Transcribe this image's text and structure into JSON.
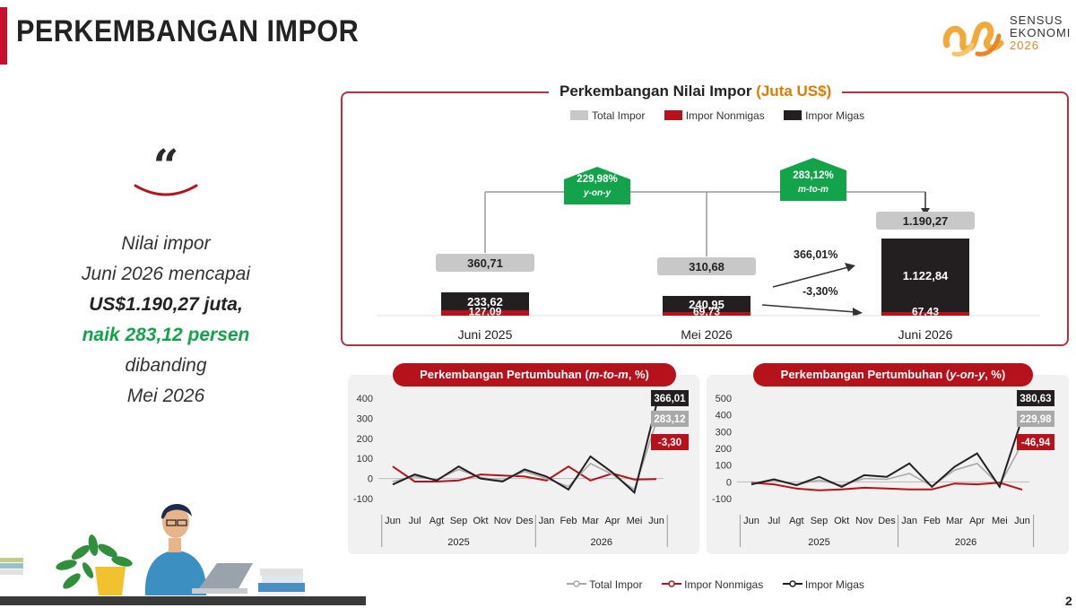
{
  "header": {
    "title": "PERKEMBANGAN IMPOR",
    "logo_text": [
      "SENSUS",
      "EKONOMI",
      "2026"
    ]
  },
  "quote": {
    "mark": "“",
    "line1": "Nilai impor",
    "line2": "Juni 2026 mencapai",
    "line3": "US$1.190,27 juta,",
    "line4": "naik 283,12 persen",
    "line5": "dibanding",
    "line6": "Mei 2026"
  },
  "main_chart": {
    "title_main": "Perkembangan Nilai Impor ",
    "title_unit": "(Juta US$)",
    "legend": [
      "Total Impor",
      "Impor Nonmigas",
      "Impor Migas"
    ],
    "badge_yoy_value": "229,98%",
    "badge_yoy_label": "y-on-y",
    "badge_mtm_value": "283,12%",
    "badge_mtm_label": "m-to-m",
    "arrow_migas_label": "366,01%",
    "arrow_nonmigas_label": "-3,30%"
  },
  "chart_data": [
    {
      "type": "bar",
      "title": "Perkembangan Nilai Impor (Juta US$)",
      "categories": [
        "Juni 2025",
        "Mei 2026",
        "Juni 2026"
      ],
      "series": [
        {
          "name": "Total Impor",
          "values": [
            360.71,
            310.68,
            1190.27
          ],
          "labels": [
            "360,71",
            "310,68",
            "1.190,27"
          ]
        },
        {
          "name": "Impor Nonmigas",
          "values": [
            127.09,
            69.73,
            67.43
          ],
          "labels": [
            "127,09",
            "69,73",
            "67,43"
          ]
        },
        {
          "name": "Impor Migas",
          "values": [
            233.62,
            240.95,
            1122.84
          ],
          "labels": [
            "233,62",
            "240,95",
            "1.122,84"
          ]
        }
      ],
      "stacked": true,
      "colors": {
        "total": "#c8c8c8",
        "nonmigas": "#b5121b",
        "migas": "#231f20"
      }
    },
    {
      "type": "line",
      "title": "Perkembangan Pertumbuhan (m-to-m, %)",
      "x": [
        "Jun",
        "Jul",
        "Agt",
        "Sep",
        "Okt",
        "Nov",
        "Des",
        "Jan",
        "Feb",
        "Mar",
        "Apr",
        "Mei",
        "Jun"
      ],
      "year_groups": [
        {
          "label": "2025",
          "count": 7
        },
        {
          "label": "2026",
          "count": 6
        }
      ],
      "ylim": [
        -100,
        400
      ],
      "yticks": [
        -100,
        0,
        100,
        200,
        300,
        400
      ],
      "series": [
        {
          "name": "Total Impor",
          "values": [
            -15,
            10,
            -5,
            45,
            5,
            -10,
            35,
            0,
            -40,
            75,
            20,
            -55,
            283.12
          ]
        },
        {
          "name": "Impor Nonmigas",
          "values": [
            60,
            -15,
            -15,
            -10,
            20,
            15,
            10,
            -10,
            60,
            -10,
            25,
            -5,
            -3.3
          ]
        },
        {
          "name": "Impor Migas",
          "values": [
            -30,
            20,
            -10,
            60,
            0,
            -15,
            45,
            10,
            -55,
            110,
            30,
            -70,
            366.01
          ]
        }
      ],
      "end_labels": [
        "366,01",
        "283,12",
        "-3,30"
      ]
    },
    {
      "type": "line",
      "title": "Perkembangan Pertumbuhan (y-on-y, %)",
      "x": [
        "Jun",
        "Jul",
        "Agt",
        "Sep",
        "Okt",
        "Nov",
        "Des",
        "Jan",
        "Feb",
        "Mar",
        "Apr",
        "Mei",
        "Jun"
      ],
      "year_groups": [
        {
          "label": "2025",
          "count": 7
        },
        {
          "label": "2026",
          "count": 6
        }
      ],
      "ylim": [
        -100,
        500
      ],
      "yticks": [
        -100,
        0,
        100,
        200,
        300,
        400,
        500
      ],
      "series": [
        {
          "name": "Total Impor",
          "values": [
            -10,
            10,
            -15,
            10,
            -20,
            20,
            15,
            50,
            -25,
            70,
            110,
            -20,
            229.98
          ]
        },
        {
          "name": "Impor Nonmigas",
          "values": [
            -5,
            -15,
            -40,
            -50,
            -45,
            -35,
            -40,
            -45,
            -45,
            -10,
            -15,
            -5,
            -46.94
          ]
        },
        {
          "name": "Impor Migas",
          "values": [
            -15,
            15,
            -20,
            30,
            -30,
            40,
            30,
            110,
            -30,
            90,
            170,
            -30,
            380.63
          ]
        }
      ],
      "end_labels": [
        "380,63",
        "229,98",
        "-46,94"
      ]
    }
  ],
  "mtm_chart": {
    "title_prefix": "Perkembangan Pertumbuhan (",
    "title_em": "m-to-m",
    "title_suffix": ", %)"
  },
  "yoy_chart": {
    "title_prefix": "Perkembangan Pertumbuhan (",
    "title_em": "y-on-y",
    "title_suffix": ", %)"
  },
  "bottom_legend": [
    "Total Impor",
    "Impor Nonmigas",
    "Impor Migas"
  ],
  "page_number": "2"
}
